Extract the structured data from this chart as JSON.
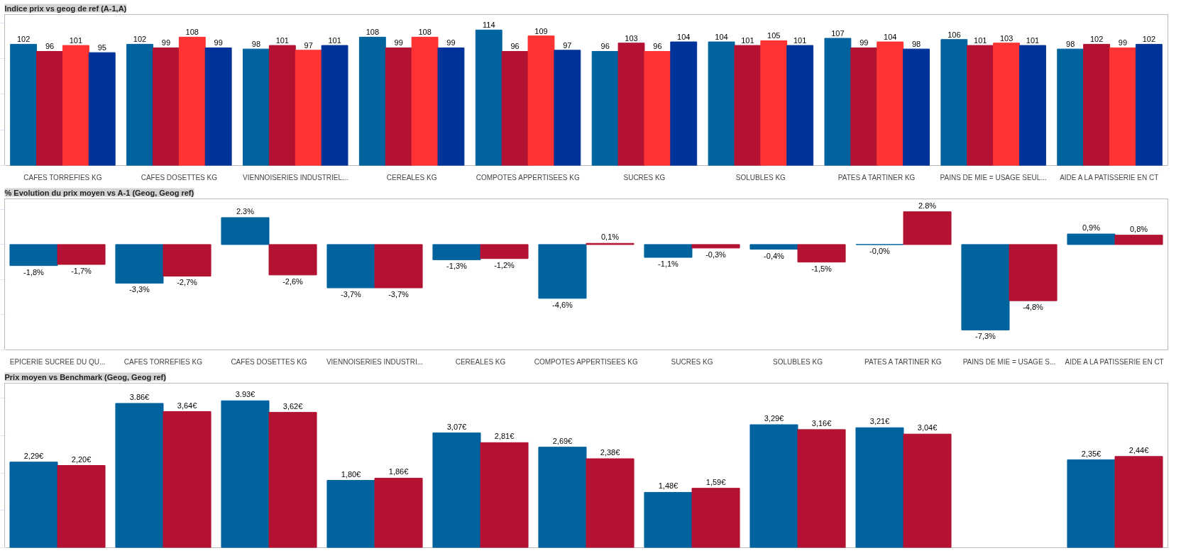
{
  "chart_data": [
    {
      "type": "bar",
      "title": "Indice prix vs geog de ref (A-1,A)",
      "categories": [
        "CAFES TORREFIES KG",
        "CAFES DOSETTES KG",
        "VIENNOISERIES INDUSTRIEL...",
        "CEREALES KG",
        "COMPOTES APPERTISEES KG",
        "SUCRES KG",
        "SOLUBLES KG",
        "PATES A TARTINER KG",
        "PAINS DE MIE = USAGE SEUL...",
        "AIDE A LA PATISSERIE EN CT"
      ],
      "series": [
        {
          "color": "#00639e",
          "values": [
            102,
            102,
            98,
            108,
            114,
            96,
            104,
            107,
            106,
            98
          ]
        },
        {
          "color": "#b31232",
          "values": [
            96,
            99,
            101,
            99,
            96,
            103,
            101,
            99,
            101,
            102
          ]
        },
        {
          "color": "#ff3333",
          "values": [
            101,
            108,
            97,
            108,
            109,
            96,
            105,
            104,
            103,
            99
          ]
        },
        {
          "color": "#003399",
          "values": [
            95,
            99,
            101,
            99,
            97,
            104,
            101,
            98,
            101,
            102
          ]
        }
      ],
      "ylim": [
        0,
        127
      ],
      "yticks": [
        {
          "value": 0,
          "label": null
        },
        {
          "value": 30,
          "label": null
        },
        {
          "value": 60,
          "label": null
        },
        {
          "value": 90,
          "label": null
        },
        {
          "value": 120,
          "label": null
        }
      ],
      "tick_labels": "x",
      "data_labels": true
    },
    {
      "type": "bar",
      "title": "% Evolution du prix moyen vs A-1 (Geog, Geog ref)",
      "categories": [
        "EPICERIE SUCREE DU QU...",
        "CAFES TORREFIES KG",
        "CAFES DOSETTES KG",
        "VIENNOISERIES INDUSTRI...",
        "CEREALES KG",
        "COMPOTES APPERTISEES KG",
        "SUCRES KG",
        "SOLUBLES KG",
        "PATES A TARTINER KG",
        "PAINS DE MIE = USAGE S...",
        "AIDE A LA PATISSERIE EN CT"
      ],
      "series": [
        {
          "color": "#00639e",
          "values": [
            -1.8,
            -3.3,
            2.3,
            -3.7,
            -1.3,
            -4.6,
            -1.1,
            -0.4,
            -0.0,
            -7.3,
            0.9
          ],
          "value_labels": [
            "-1,8%",
            "-3,3%",
            "2.3%",
            "-3,7%",
            "-1,3%",
            "-4,6%",
            "-1,1%",
            "-0,4%",
            "-0,0%",
            "-7,3%",
            "0,9%"
          ]
        },
        {
          "color": "#b31232",
          "values": [
            -1.7,
            -2.7,
            -2.6,
            -3.7,
            -1.2,
            0.1,
            -0.3,
            -1.5,
            2.8,
            -4.8,
            0.8
          ],
          "value_labels": [
            "-1,7%",
            "-2,7%",
            "-2,6%",
            "-3,7%",
            "-1,2%",
            "0,1%",
            "-0,3%",
            "-1,5%",
            "2.8%",
            "-4,8%",
            "0,8%"
          ]
        }
      ],
      "ylim": [
        -9,
        3.9
      ],
      "yticks": [
        {
          "value": -9,
          "label": null
        },
        {
          "value": -6,
          "label": null
        },
        {
          "value": -3,
          "label": null
        },
        {
          "value": 0,
          "label": null
        },
        {
          "value": 3,
          "label": null
        }
      ],
      "tick_labels": "x"
    },
    {
      "type": "bar",
      "title": "Prix moyen vs Benchmark (Geog, Geog ref)",
      "categories": [
        null,
        null,
        null,
        null,
        null,
        null,
        null,
        null,
        null,
        null,
        null
      ],
      "series": [
        {
          "color": "#00639e",
          "values": [
            2.29,
            3.86,
            3.93,
            1.8,
            3.07,
            2.69,
            1.48,
            3.29,
            3.21,
            null,
            2.35
          ],
          "value_labels": [
            "2,29€",
            "3.86€",
            "3.93€",
            "1,80€",
            "3,07€",
            "2,69€",
            "1,48€",
            "3,29€",
            "3,21€",
            null,
            "2,35€"
          ]
        },
        {
          "color": "#b31232",
          "values": [
            2.2,
            3.64,
            3.62,
            1.86,
            2.81,
            2.38,
            1.59,
            3.16,
            3.04,
            null,
            2.44
          ],
          "value_labels": [
            "2,20€",
            "3,64€",
            "3,62€",
            "1,86€",
            "2,81€",
            "2,38€",
            "1,59€",
            "3,16€",
            "3,04€",
            null,
            "2,44€"
          ]
        }
      ],
      "ylim": [
        0,
        4.4
      ],
      "yticks": [
        {
          "value": 0,
          "label": null
        },
        {
          "value": 1,
          "label": null
        },
        {
          "value": 2,
          "label": null
        },
        {
          "value": 3,
          "label": null
        },
        {
          "value": 4,
          "label": null
        }
      ],
      "tick_labels": false
    }
  ]
}
